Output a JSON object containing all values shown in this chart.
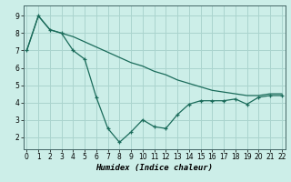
{
  "xlabel": "Humidex (Indice chaleur)",
  "bg_color": "#cceee8",
  "grid_color": "#aad4ce",
  "line_color": "#1a6b5a",
  "x_data": [
    0,
    1,
    2,
    3,
    4,
    5,
    6,
    7,
    8,
    9,
    10,
    11,
    12,
    13,
    14,
    15,
    16,
    17,
    18,
    19,
    20,
    21,
    22
  ],
  "y_smooth": [
    7.0,
    9.0,
    8.2,
    8.0,
    7.8,
    7.5,
    7.2,
    6.9,
    6.6,
    6.3,
    6.1,
    5.8,
    5.6,
    5.3,
    5.1,
    4.9,
    4.7,
    4.6,
    4.5,
    4.4,
    4.4,
    4.5,
    4.5
  ],
  "y_jagged": [
    7.0,
    9.0,
    8.2,
    8.0,
    7.0,
    6.5,
    4.3,
    2.5,
    1.7,
    2.3,
    3.0,
    2.6,
    2.5,
    3.3,
    3.9,
    4.1,
    4.1,
    4.1,
    4.2,
    3.9,
    4.3,
    4.4,
    4.4
  ],
  "ylim": [
    1.3,
    9.6
  ],
  "xlim": [
    -0.3,
    22.3
  ],
  "yticks": [
    2,
    3,
    4,
    5,
    6,
    7,
    8,
    9
  ],
  "xticks": [
    0,
    1,
    2,
    3,
    4,
    5,
    6,
    7,
    8,
    9,
    10,
    11,
    12,
    13,
    14,
    15,
    16,
    17,
    18,
    19,
    20,
    21,
    22
  ],
  "tick_fontsize": 5.5,
  "xlabel_fontsize": 6.5
}
